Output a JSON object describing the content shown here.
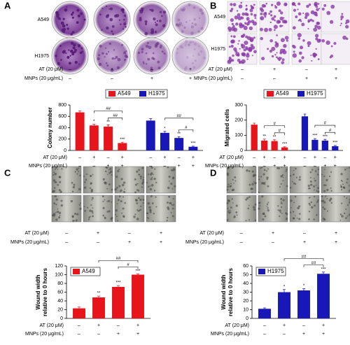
{
  "panels": [
    {
      "label": "A",
      "image_rows": [
        "A549",
        "H1975"
      ],
      "treatments": [
        {
          "label": "AT (20 μM)",
          "signs": [
            "–",
            "+",
            "–",
            "+"
          ]
        },
        {
          "label": "MNPs (20 μg/mL)",
          "signs": [
            "–",
            "–",
            "+",
            "+"
          ]
        }
      ]
    },
    {
      "label": "B",
      "image_rows": [
        "A549",
        "H1975"
      ],
      "treatments": [
        {
          "label": "AT (20 μM)",
          "signs": [
            "–",
            "+",
            "–",
            "+"
          ]
        },
        {
          "label": "MNPs (20 μg/mL)",
          "signs": [
            "–",
            "–",
            "+",
            "+"
          ]
        }
      ]
    },
    {
      "label": "C",
      "treatments": [
        {
          "label": "AT (20 μM)",
          "signs": [
            "–",
            "+",
            "–",
            "+"
          ]
        },
        {
          "label": "MNPs (20 μg/mL)",
          "signs": [
            "–",
            "–",
            "+",
            "+"
          ]
        }
      ]
    },
    {
      "label": "D",
      "treatments": [
        {
          "label": "AT (20 μM)",
          "signs": [
            "–",
            "+",
            "–",
            "+"
          ]
        },
        {
          "label": "MNPs (20 μg/mL)",
          "signs": [
            "–",
            "–",
            "+",
            "+"
          ]
        }
      ]
    }
  ],
  "chart_data": [
    {
      "type": "bar",
      "ylabel": "Colony number",
      "ylim": [
        0,
        800
      ],
      "yticks": [
        0,
        200,
        400,
        600,
        800
      ],
      "legend": "top",
      "series": [
        {
          "name": "A549",
          "color": "#e8141c",
          "values": [
            670,
            440,
            420,
            130
          ],
          "errors": [
            25,
            20,
            30,
            15
          ],
          "marks": [
            null,
            "*",
            "**",
            "***"
          ]
        },
        {
          "name": "H1975",
          "color": "#1818b8",
          "values": [
            525,
            310,
            220,
            65
          ],
          "errors": [
            35,
            25,
            20,
            10
          ],
          "marks": [
            null,
            "*",
            "**",
            "***"
          ]
        }
      ],
      "brackets": [
        {
          "label": "##",
          "series": 0,
          "from": 2,
          "to": 3
        },
        {
          "label": "##",
          "series": 0,
          "from": 1,
          "to": 3
        },
        {
          "label": "#",
          "series": 1,
          "from": 2,
          "to": 3
        },
        {
          "label": "##",
          "series": 1,
          "from": 1,
          "to": 3
        }
      ],
      "treatments": [
        {
          "label": "AT (20 μM)",
          "signs": [
            "–",
            "+",
            "–",
            "+",
            "–",
            "+",
            "–",
            "+"
          ]
        },
        {
          "label": "MNPs (20 μg/mL)",
          "signs": [
            "–",
            "–",
            "+",
            "+",
            "–",
            "–",
            "+",
            "+"
          ]
        }
      ]
    },
    {
      "type": "bar",
      "ylabel": "Migrated cells",
      "ylim": [
        0,
        300
      ],
      "yticks": [
        0,
        100,
        200,
        300
      ],
      "legend": "top",
      "series": [
        {
          "name": "A549",
          "color": "#e8141c",
          "values": [
            170,
            65,
            62,
            20
          ],
          "errors": [
            10,
            10,
            8,
            4
          ],
          "marks": [
            null,
            "**",
            "**",
            "***"
          ]
        },
        {
          "name": "H1975",
          "color": "#1818b8",
          "values": [
            225,
            70,
            65,
            28
          ],
          "errors": [
            15,
            8,
            8,
            5
          ],
          "marks": [
            null,
            "***",
            "***",
            "***"
          ]
        }
      ],
      "brackets": [
        {
          "label": "#",
          "series": 0,
          "from": 2,
          "to": 3
        },
        {
          "label": "#",
          "series": 0,
          "from": 1,
          "to": 3
        },
        {
          "label": "#",
          "series": 1,
          "from": 2,
          "to": 3
        },
        {
          "label": "#",
          "series": 1,
          "from": 1,
          "to": 3
        }
      ],
      "treatments": [
        {
          "label": "AT (20 μM)",
          "signs": [
            "–",
            "+",
            "–",
            "+",
            "–",
            "+",
            "–",
            "+"
          ]
        },
        {
          "label": "MNPs (20 μg/mL)",
          "signs": [
            "–",
            "–",
            "+",
            "+",
            "–",
            "–",
            "+",
            "+"
          ]
        }
      ]
    },
    {
      "type": "bar",
      "ylabel": [
        "Wound width",
        "relative to 0 hours"
      ],
      "ylim": [
        0,
        120
      ],
      "yticks": [
        0,
        20,
        40,
        60,
        80,
        100,
        120
      ],
      "legend": "upper left",
      "series": [
        {
          "name": "A549",
          "color": "#e8141c",
          "values": [
            23,
            48,
            72,
            100
          ],
          "errors": [
            3,
            3,
            3,
            2
          ],
          "marks": [
            null,
            "**",
            "***",
            "***"
          ]
        }
      ],
      "brackets": [
        {
          "label": "#",
          "series": 0,
          "from": 2,
          "to": 3
        },
        {
          "label": "##",
          "series": 0,
          "from": 1,
          "to": 3
        }
      ],
      "treatments": [
        {
          "label": "AT (20 μM)",
          "signs": [
            "–",
            "+",
            "–",
            "+"
          ]
        },
        {
          "label": "MNPs (20 μg/mL)",
          "signs": [
            "–",
            "–",
            "+",
            "+"
          ]
        }
      ]
    },
    {
      "type": "bar",
      "ylabel": [
        "Wound width",
        "relative to 0 hours"
      ],
      "ylim": [
        0,
        60
      ],
      "yticks": [
        0,
        10,
        20,
        30,
        40,
        50,
        60
      ],
      "legend": "upper left",
      "series": [
        {
          "name": "H1975",
          "color": "#1818b8",
          "values": [
            11,
            30,
            32,
            51
          ],
          "errors": [
            1,
            3,
            2,
            2
          ],
          "marks": [
            null,
            "*",
            "*",
            "***"
          ]
        }
      ],
      "brackets": [
        {
          "label": "##",
          "series": 0,
          "from": 2,
          "to": 3
        },
        {
          "label": "##",
          "series": 0,
          "from": 1,
          "to": 3
        }
      ],
      "treatments": [
        {
          "label": "AT (20 μM)",
          "signs": [
            "–",
            "+",
            "–",
            "+"
          ]
        },
        {
          "label": "MNPs (20 μg/mL)",
          "signs": [
            "–",
            "–",
            "+",
            "+"
          ]
        }
      ]
    }
  ]
}
